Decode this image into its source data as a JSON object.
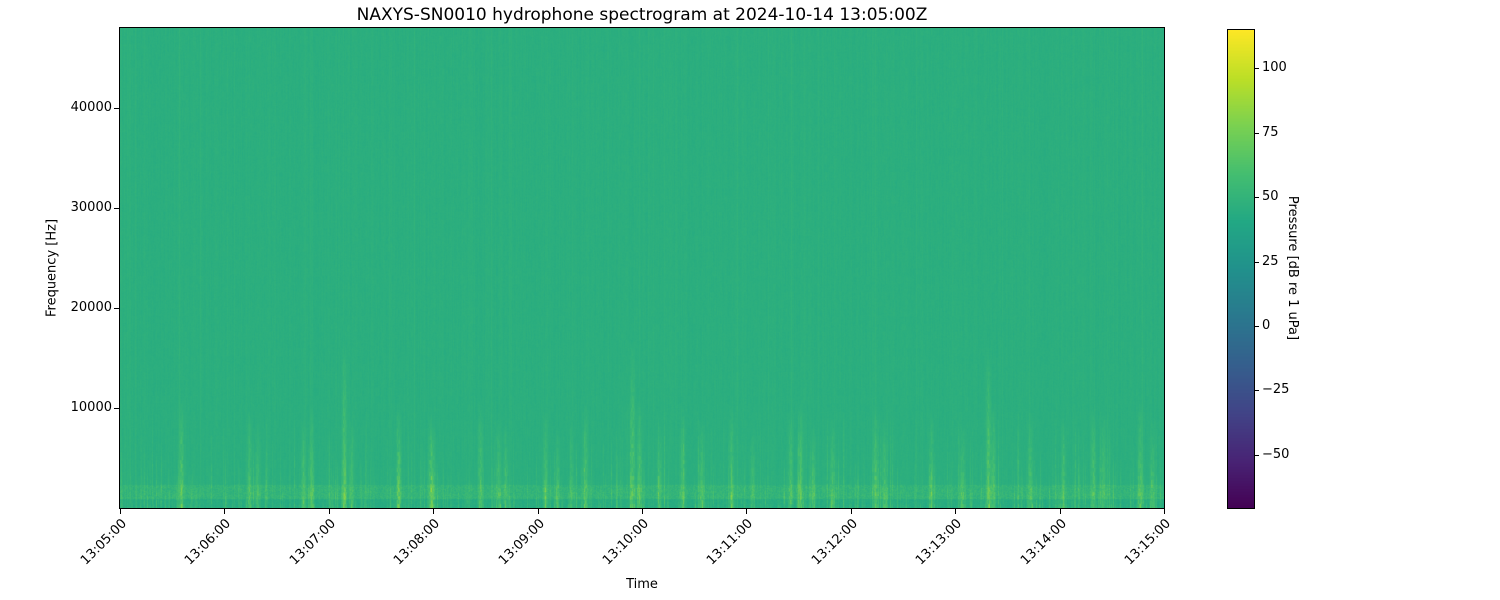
{
  "chart_data": {
    "type": "heatmap",
    "subtype": "spectrogram",
    "title": "NAXYS-SN0010 hydrophone spectrogram at 2024-10-14 13:05:00Z",
    "xlabel": "Time",
    "ylabel": "Frequency [Hz]",
    "grid": false,
    "x_tick_labels": [
      "13:05:00",
      "13:06:00",
      "13:07:00",
      "13:08:00",
      "13:09:00",
      "13:10:00",
      "13:11:00",
      "13:12:00",
      "13:13:00",
      "13:14:00",
      "13:15:00"
    ],
    "x_tick_seconds": [
      0,
      60,
      120,
      180,
      240,
      300,
      360,
      420,
      480,
      540,
      600
    ],
    "time_span_seconds": 600,
    "start_time": "2024-10-14 13:05:00Z",
    "ylim_hz": [
      0,
      48000
    ],
    "y_tick_values_hz": [
      10000,
      20000,
      30000,
      40000
    ],
    "y_tick_labels": [
      "10000",
      "20000",
      "30000",
      "40000"
    ],
    "colorbar": {
      "label": "Pressure [dB re 1 uPa]",
      "tick_values": [
        100,
        75,
        50,
        25,
        0,
        -25,
        -50
      ],
      "tick_labels": [
        "100",
        "75",
        "50",
        "25",
        "0",
        "−25",
        "−50"
      ],
      "clim_db": [
        -70.6,
        114.8
      ],
      "colormap": "viridis"
    },
    "background_level_db": 46,
    "low_band_db_boost": 4,
    "noise_seed": 42,
    "minor_streaks": {
      "density_per_column": 0.5,
      "max_boost_db": 14,
      "fmax_range_hz": [
        1200,
        10700
      ]
    },
    "transient_events": [
      {
        "t_s": 35,
        "fmax_hz": 10800,
        "peak_db": 68
      },
      {
        "t_s": 74,
        "fmax_hz": 9800,
        "peak_db": 62
      },
      {
        "t_s": 79,
        "fmax_hz": 8500,
        "peak_db": 60
      },
      {
        "t_s": 105,
        "fmax_hz": 9000,
        "peak_db": 62
      },
      {
        "t_s": 110,
        "fmax_hz": 10300,
        "peak_db": 64
      },
      {
        "t_s": 129,
        "fmax_hz": 16500,
        "peak_db": 66
      },
      {
        "t_s": 133,
        "fmax_hz": 9000,
        "peak_db": 61
      },
      {
        "t_s": 160,
        "fmax_hz": 10500,
        "peak_db": 63
      },
      {
        "t_s": 178,
        "fmax_hz": 9500,
        "peak_db": 64
      },
      {
        "t_s": 180,
        "fmax_hz": 8000,
        "peak_db": 60
      },
      {
        "t_s": 207,
        "fmax_hz": 10800,
        "peak_db": 65
      },
      {
        "t_s": 217,
        "fmax_hz": 9000,
        "peak_db": 62
      },
      {
        "t_s": 221,
        "fmax_hz": 8400,
        "peak_db": 60
      },
      {
        "t_s": 244,
        "fmax_hz": 9600,
        "peak_db": 63
      },
      {
        "t_s": 251,
        "fmax_hz": 8000,
        "peak_db": 60
      },
      {
        "t_s": 267,
        "fmax_hz": 10400,
        "peak_db": 64
      },
      {
        "t_s": 294,
        "fmax_hz": 16800,
        "peak_db": 68
      },
      {
        "t_s": 298,
        "fmax_hz": 10800,
        "peak_db": 66
      },
      {
        "t_s": 310,
        "fmax_hz": 8600,
        "peak_db": 61
      },
      {
        "t_s": 323,
        "fmax_hz": 10000,
        "peak_db": 63
      },
      {
        "t_s": 334,
        "fmax_hz": 9000,
        "peak_db": 62
      },
      {
        "t_s": 351,
        "fmax_hz": 10500,
        "peak_db": 64
      },
      {
        "t_s": 363,
        "fmax_hz": 8200,
        "peak_db": 60
      },
      {
        "t_s": 385,
        "fmax_hz": 9800,
        "peak_db": 63
      },
      {
        "t_s": 391,
        "fmax_hz": 10800,
        "peak_db": 66
      },
      {
        "t_s": 398,
        "fmax_hz": 8400,
        "peak_db": 61
      },
      {
        "t_s": 409,
        "fmax_hz": 9400,
        "peak_db": 62
      },
      {
        "t_s": 434,
        "fmax_hz": 10200,
        "peak_db": 65
      },
      {
        "t_s": 439,
        "fmax_hz": 9000,
        "peak_db": 62
      },
      {
        "t_s": 466,
        "fmax_hz": 9800,
        "peak_db": 63
      },
      {
        "t_s": 484,
        "fmax_hz": 8600,
        "peak_db": 61
      },
      {
        "t_s": 499,
        "fmax_hz": 16200,
        "peak_db": 67
      },
      {
        "t_s": 502,
        "fmax_hz": 10800,
        "peak_db": 65
      },
      {
        "t_s": 523,
        "fmax_hz": 9600,
        "peak_db": 63
      },
      {
        "t_s": 542,
        "fmax_hz": 8800,
        "peak_db": 61
      },
      {
        "t_s": 559,
        "fmax_hz": 10300,
        "peak_db": 64
      },
      {
        "t_s": 565,
        "fmax_hz": 9600,
        "peak_db": 62
      },
      {
        "t_s": 586,
        "fmax_hz": 10800,
        "peak_db": 65
      },
      {
        "t_s": 593,
        "fmax_hz": 9000,
        "peak_db": 62
      }
    ]
  }
}
